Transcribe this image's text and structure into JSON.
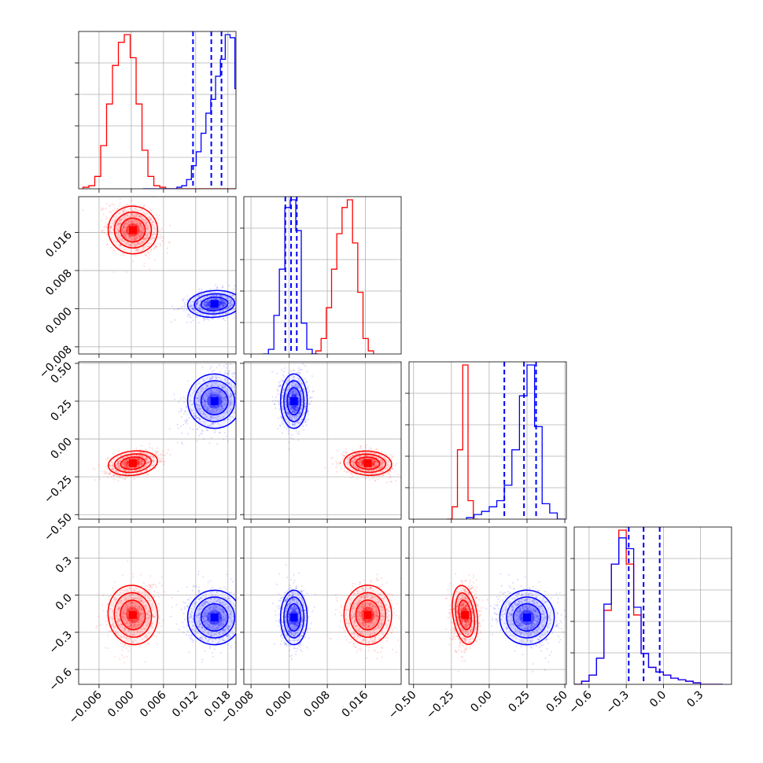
{
  "chart_data": {
    "type": "corner",
    "grid": true,
    "params": [
      {
        "key": "p1",
        "range": [
          -0.0098,
          0.0195
        ],
        "ticks": [
          -0.006,
          0.0,
          0.006,
          0.012,
          0.018
        ],
        "tick_labels": [
          "−0.006",
          "0.000",
          "0.006",
          "0.012",
          "0.018"
        ]
      },
      {
        "key": "p2",
        "range": [
          -0.0095,
          0.0235
        ],
        "ticks": [
          -0.008,
          0.0,
          0.008,
          0.016
        ],
        "tick_labels": [
          "−0.008",
          "0.000",
          "0.008",
          "0.016"
        ]
      },
      {
        "key": "p3",
        "range": [
          -0.53,
          0.51
        ],
        "ticks": [
          -0.5,
          -0.25,
          0.0,
          0.25,
          0.5
        ],
        "tick_labels": [
          "−0.50",
          "−0.25",
          "0.00",
          "0.25",
          "0.50"
        ]
      },
      {
        "key": "p4",
        "range": [
          -0.72,
          0.55
        ],
        "ticks": [
          -0.6,
          -0.3,
          0.0,
          0.3
        ],
        "tick_labels": [
          "−0.6",
          "−0.3",
          "0.0",
          "0.3"
        ]
      }
    ],
    "series": [
      {
        "color": "#ff0000",
        "mean": [
          0.0003,
          0.0165,
          -0.16,
          -0.16
        ],
        "sd": [
          0.0023,
          0.0025,
          0.04,
          0.12
        ],
        "points_xy_panels": {
          "p1_p2": {
            "corr": -0.3
          },
          "p1_p3": {
            "corr": 0.4
          },
          "p2_p3": {
            "corr": -0.2
          },
          "p1_p4": {
            "corr": 0.2
          },
          "p2_p4": {
            "corr": 0.0
          },
          "p3_p4": {
            "corr": 0.1
          }
        },
        "hist": {
          "p1": {
            "start": -0.009,
            "width": 0.0011,
            "counts": [
              1,
              2,
              8,
              28,
              55,
              80,
              95,
              100,
              85,
              55,
              25,
              8,
              2,
              1,
              0,
              0,
              0,
              0,
              0,
              0,
              0,
              0,
              0,
              0,
              0,
              0
            ]
          },
          "p2": {
            "start": 0.0045,
            "width": 0.0011,
            "counts": [
              0,
              2,
              10,
              30,
              55,
              78,
              95,
              100,
              72,
              40,
              10,
              2
            ]
          },
          "p3": {
            "start": -0.28,
            "width": 0.035,
            "counts": [
              0,
              8,
              45,
              100,
              12,
              0
            ]
          },
          "p4": {
            "start": -0.72,
            "width": 0.06,
            "counts": [
              0,
              2,
              6,
              17,
              48,
              78,
              100,
              78,
              45,
              20,
              11,
              8,
              6,
              4,
              3,
              2,
              1,
              0,
              0,
              0
            ]
          }
        }
      },
      {
        "color": "#0000ff",
        "mean": [
          0.0155,
          0.001,
          0.25,
          -0.18
        ],
        "sd": [
          0.0025,
          0.0014,
          0.09,
          0.11
        ],
        "points_xy_panels": {
          "p1_p2": {
            "corr": 0.2
          },
          "p1_p3": {
            "corr": 0.35
          },
          "p2_p3": {
            "corr": 0.0
          },
          "p1_p4": {
            "corr": 0.0
          },
          "p2_p4": {
            "corr": 0.0
          },
          "p3_p4": {
            "corr": -0.2
          }
        },
        "hist": {
          "p1": {
            "start": 0.0022,
            "width": 0.0009,
            "counts": [
              0,
              0,
              0,
              0,
              0,
              0,
              0,
              1,
              2,
              6,
              15,
              24,
              36,
              49,
              58,
              73,
              84,
              100,
              98,
              65,
              30,
              0
            ]
          },
          "p2": {
            "start": -0.0055,
            "width": 0.00115,
            "counts": [
              0,
              3,
              25,
              55,
              95,
              100,
              80,
              20,
              3,
              0
            ]
          },
          "p3": {
            "start": -0.15,
            "width": 0.05,
            "counts": [
              1,
              3,
              5,
              8,
              12,
              22,
              45,
              80,
              100,
              60,
              10,
              4,
              0
            ]
          },
          "p4": {
            "start": -0.72,
            "width": 0.06,
            "counts": [
              0,
              2,
              6,
              17,
              52,
              78,
              95,
              88,
              50,
              20,
              11,
              8,
              6,
              4,
              3,
              2,
              1,
              0,
              0,
              0
            ]
          }
        },
        "quantiles": {
          "p1": [
            0.0115,
            0.0149,
            0.0168
          ],
          "p2": [
            -0.0008,
            0.0004,
            0.0016
          ],
          "p3": [
            0.1,
            0.23,
            0.31
          ],
          "p4": [
            -0.28,
            -0.16,
            -0.03
          ]
        }
      }
    ]
  }
}
